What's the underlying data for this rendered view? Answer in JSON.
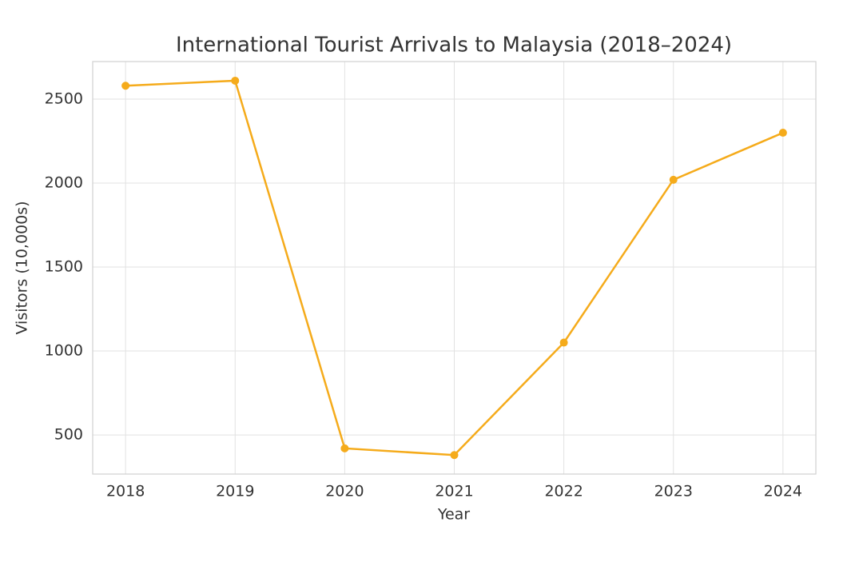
{
  "chart_data": {
    "type": "line",
    "title": "International Tourist Arrivals to Malaysia (2018–2024)",
    "x_label": "Year",
    "y_label": "Visitors (10,000s)",
    "x": [
      2018,
      2019,
      2020,
      2021,
      2022,
      2023,
      2024
    ],
    "series": [
      {
        "name": "International Tourist Arrivals",
        "color": "#f5ab1b",
        "values": [
          2580,
          2610,
          420,
          380,
          1050,
          2020,
          2300
        ]
      }
    ],
    "xlim": [
      2017.7,
      2024.3
    ],
    "xticks": [
      2018,
      2019,
      2020,
      2021,
      2022,
      2023,
      2024
    ],
    "ylim": [
      267,
      2724
    ],
    "yticks": [
      500,
      1000,
      1500,
      2000,
      2500
    ],
    "grid": true
  }
}
